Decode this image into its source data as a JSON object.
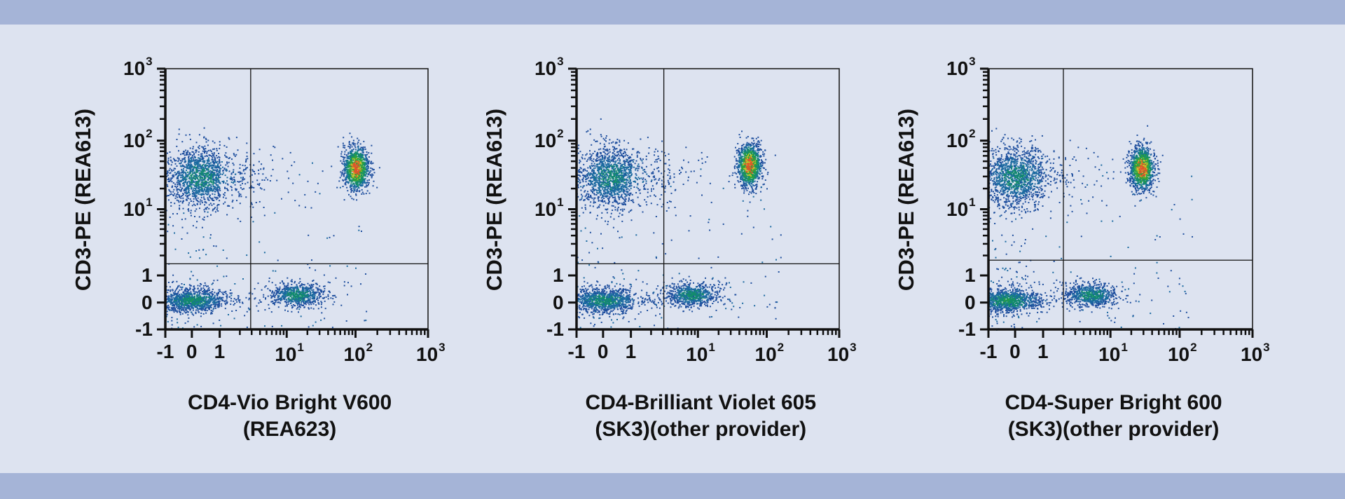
{
  "colors": {
    "band": "#a5b4d7",
    "background": "#dde3f0",
    "axis": "#111111",
    "density": [
      "#1f4f9e",
      "#1b6aa0",
      "#138a6e",
      "#2ea33a",
      "#c9c22a",
      "#e0562a"
    ]
  },
  "chart_data": [
    {
      "type": "scatter",
      "ylabel": "CD3-PE (REA613)",
      "xlabel_lines": [
        "CD4-Vio Bright V600",
        "(REA623)"
      ],
      "x_ticks": [
        {
          "v": -1,
          "t": "-1"
        },
        {
          "v": 0,
          "t": "0"
        },
        {
          "v": 1,
          "t": "1"
        },
        {
          "v": 10,
          "t": "10",
          "e": "1"
        },
        {
          "v": 100,
          "t": "10",
          "e": "2"
        },
        {
          "v": 1000,
          "t": "10",
          "e": "3"
        }
      ],
      "y_ticks": [
        {
          "v": -1,
          "t": "-1"
        },
        {
          "v": 0,
          "t": "0"
        },
        {
          "v": 1,
          "t": "1"
        },
        {
          "v": 10,
          "t": "10",
          "e": "1"
        },
        {
          "v": 100,
          "t": "10",
          "e": "2"
        },
        {
          "v": 1000,
          "t": "10",
          "e": "3"
        }
      ],
      "xlim": [
        -1,
        1000
      ],
      "ylim": [
        -1,
        1000
      ],
      "gate": {
        "x": 2.9,
        "y": 1.5
      },
      "populations": [
        {
          "name": "CD3+CD4-",
          "x": 0.3,
          "y": 30,
          "sdx": 0.6,
          "sdy": 0.22,
          "n": 1500,
          "peak": 0.35
        },
        {
          "name": "CD3+CD4+",
          "x": 100,
          "y": 40,
          "sdx": 0.09,
          "sdy": 0.16,
          "n": 1100,
          "peak": 1
        },
        {
          "name": "CD3-CD4-",
          "x": 0,
          "y": 0.1,
          "sdx": 0.6,
          "sdy": 0.22,
          "n": 1100,
          "peak": 0.4
        },
        {
          "name": "CD3-CD4+ low",
          "x": 14,
          "y": 0.3,
          "sdx": 0.2,
          "sdy": 0.22,
          "n": 700,
          "peak": 0.4
        }
      ]
    },
    {
      "type": "scatter",
      "ylabel": "CD3-PE (REA613)",
      "xlabel_lines": [
        "CD4-Brilliant Violet 605",
        "(SK3)(other provider)"
      ],
      "x_ticks": [
        {
          "v": -1,
          "t": "-1"
        },
        {
          "v": 0,
          "t": "0"
        },
        {
          "v": 1,
          "t": "1"
        },
        {
          "v": 10,
          "t": "10",
          "e": "1"
        },
        {
          "v": 100,
          "t": "10",
          "e": "2"
        },
        {
          "v": 1000,
          "t": "10",
          "e": "3"
        }
      ],
      "y_ticks": [
        {
          "v": -1,
          "t": "-1"
        },
        {
          "v": 0,
          "t": "0"
        },
        {
          "v": 1,
          "t": "1"
        },
        {
          "v": 10,
          "t": "10",
          "e": "1"
        },
        {
          "v": 100,
          "t": "10",
          "e": "2"
        },
        {
          "v": 1000,
          "t": "10",
          "e": "3"
        }
      ],
      "xlim": [
        -1,
        1000
      ],
      "ylim": [
        -1,
        1000
      ],
      "gate": {
        "x": 3.1,
        "y": 1.5
      },
      "populations": [
        {
          "name": "CD3+CD4-",
          "x": 0.3,
          "y": 30,
          "sdx": 0.6,
          "sdy": 0.22,
          "n": 1500,
          "peak": 0.35
        },
        {
          "name": "CD3+CD4+",
          "x": 55,
          "y": 45,
          "sdx": 0.09,
          "sdy": 0.16,
          "n": 1100,
          "peak": 1
        },
        {
          "name": "CD3-CD4-",
          "x": 0,
          "y": 0.1,
          "sdx": 0.6,
          "sdy": 0.22,
          "n": 1100,
          "peak": 0.4
        },
        {
          "name": "CD3-CD4+ low",
          "x": 8,
          "y": 0.3,
          "sdx": 0.2,
          "sdy": 0.22,
          "n": 700,
          "peak": 0.4
        }
      ]
    },
    {
      "type": "scatter",
      "ylabel": "CD3-PE (REA613)",
      "xlabel_lines": [
        "CD4-Super Bright 600",
        "(SK3)(other provider)"
      ],
      "x_ticks": [
        {
          "v": -1,
          "t": "-1"
        },
        {
          "v": 0,
          "t": "0"
        },
        {
          "v": 1,
          "t": "1"
        },
        {
          "v": 10,
          "t": "10",
          "e": "1"
        },
        {
          "v": 100,
          "t": "10",
          "e": "2"
        },
        {
          "v": 1000,
          "t": "10",
          "e": "3"
        }
      ],
      "y_ticks": [
        {
          "v": -1,
          "t": "-1"
        },
        {
          "v": 0,
          "t": "0"
        },
        {
          "v": 1,
          "t": "1"
        },
        {
          "v": 10,
          "t": "10",
          "e": "1"
        },
        {
          "v": 100,
          "t": "10",
          "e": "2"
        },
        {
          "v": 1000,
          "t": "10",
          "e": "3"
        }
      ],
      "xlim": [
        -1,
        1000
      ],
      "ylim": [
        -1,
        1000
      ],
      "gate": {
        "x": 2.0,
        "y": 1.7
      },
      "populations": [
        {
          "name": "CD3+CD4-",
          "x": 0.0,
          "y": 30,
          "sdx": 0.6,
          "sdy": 0.22,
          "n": 1500,
          "peak": 0.35
        },
        {
          "name": "CD3+CD4+",
          "x": 28,
          "y": 40,
          "sdx": 0.09,
          "sdy": 0.16,
          "n": 1100,
          "peak": 1
        },
        {
          "name": "CD3-CD4-",
          "x": -0.3,
          "y": 0.1,
          "sdx": 0.6,
          "sdy": 0.22,
          "n": 1100,
          "peak": 0.45
        },
        {
          "name": "CD3-CD4+ low",
          "x": 5,
          "y": 0.3,
          "sdx": 0.2,
          "sdy": 0.22,
          "n": 700,
          "peak": 0.4
        }
      ]
    }
  ]
}
